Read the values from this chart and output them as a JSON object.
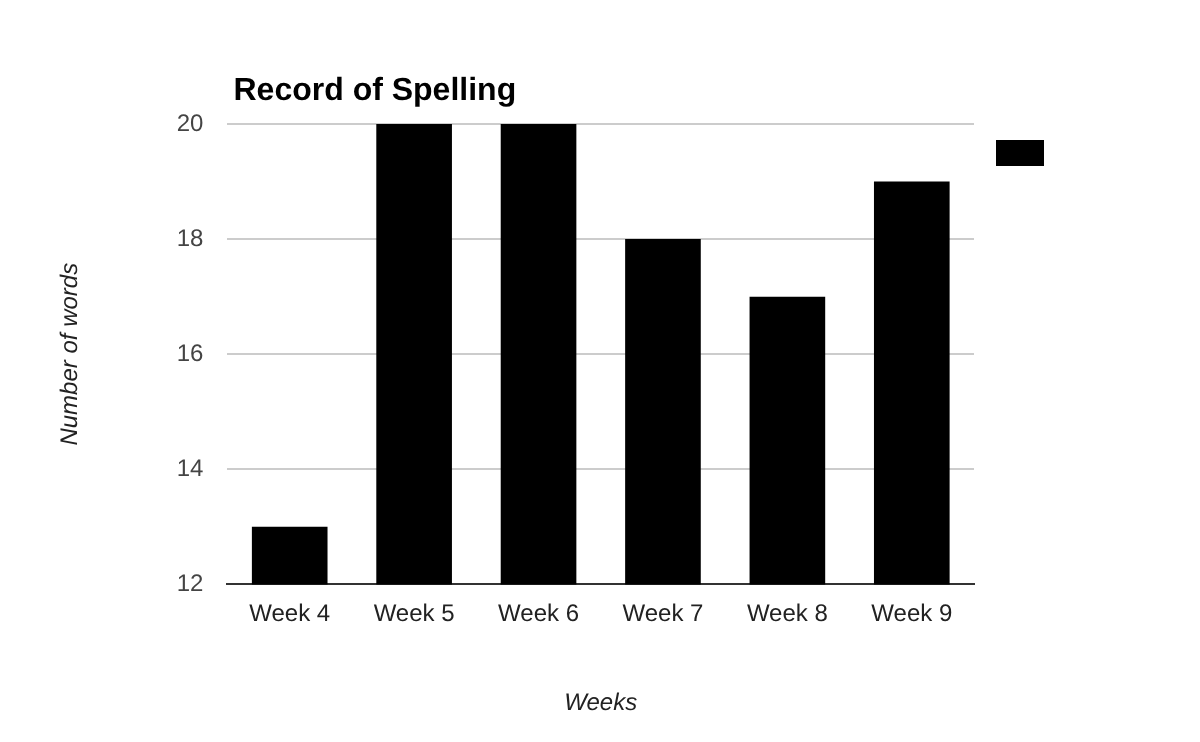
{
  "chart_data": {
    "type": "bar",
    "title": "Record of Spelling",
    "xlabel": "Weeks",
    "ylabel": "Number of words",
    "categories": [
      "Week 4",
      "Week 5",
      "Week 6",
      "Week 7",
      "Week 8",
      "Week 9"
    ],
    "series": [
      {
        "color": "#000000",
        "values": [
          13,
          20,
          20,
          18,
          17,
          19
        ]
      }
    ],
    "ylim": [
      12,
      20
    ],
    "yticks": [
      12,
      14,
      16,
      18,
      20
    ],
    "grid": "y"
  }
}
